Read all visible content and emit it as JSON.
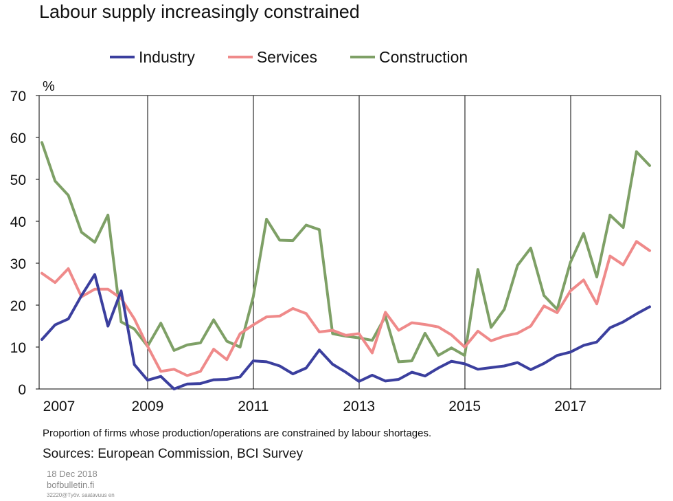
{
  "header": {
    "title": "Labour supply increasingly constrained"
  },
  "footer": {
    "note": "Proportion of firms whose production/operations are constrained by labour shortages.",
    "sources": "Sources: European Commission, BCI Survey",
    "date": "18 Dec 2018",
    "site": "bofbulletin.fi",
    "code": "32220@Työv. saatavuus en"
  },
  "chart_data": {
    "type": "line",
    "title": "Labour supply increasingly constrained",
    "ylabel": "%",
    "ylim": [
      0,
      70
    ],
    "yticks": [
      0,
      10,
      20,
      30,
      40,
      50,
      60,
      70
    ],
    "xticks": [
      "2007",
      "2009",
      "2011",
      "2013",
      "2015",
      "2017"
    ],
    "xlim": [
      2007,
      2018.5
    ],
    "grid": "vertical",
    "legend": "top",
    "x": [
      2007.0,
      2007.25,
      2007.5,
      2007.75,
      2008.0,
      2008.25,
      2008.5,
      2008.75,
      2009.0,
      2009.25,
      2009.5,
      2009.75,
      2010.0,
      2010.25,
      2010.5,
      2010.75,
      2011.0,
      2011.25,
      2011.5,
      2011.75,
      2012.0,
      2012.25,
      2012.5,
      2012.75,
      2013.0,
      2013.25,
      2013.5,
      2013.75,
      2014.0,
      2014.25,
      2014.5,
      2014.75,
      2015.0,
      2015.25,
      2015.5,
      2015.75,
      2016.0,
      2016.25,
      2016.5,
      2016.75,
      2017.0,
      2017.25,
      2017.5,
      2017.75,
      2018.0,
      2018.25
    ],
    "series": [
      {
        "name": "Industry",
        "color": "#3b3f9e",
        "values": [
          11.8,
          15.3,
          16.7,
          22.3,
          27.3,
          15.0,
          23.4,
          5.8,
          2.1,
          3.0,
          0.0,
          1.2,
          1.3,
          2.2,
          2.3,
          2.9,
          6.7,
          6.5,
          5.5,
          3.6,
          5.0,
          9.3,
          5.9,
          4.0,
          1.8,
          3.3,
          1.9,
          2.3,
          4.0,
          3.1,
          5.0,
          6.6,
          6.0,
          4.7,
          5.1,
          5.5,
          6.3,
          4.6,
          6.1,
          8.0,
          8.8,
          10.4,
          11.2,
          14.6,
          16.0,
          17.9
        ]
      },
      {
        "name": "Services",
        "color": "#ef8a8a",
        "values": [
          27.6,
          25.4,
          28.7,
          22.0,
          23.8,
          23.8,
          21.6,
          16.7,
          10.2,
          4.2,
          4.7,
          3.2,
          4.2,
          9.5,
          7.0,
          13.2,
          15.3,
          17.2,
          17.4,
          19.2,
          18.0,
          13.6,
          14.0,
          12.8,
          13.2,
          8.6,
          18.3,
          14.0,
          15.8,
          15.4,
          14.8,
          12.9,
          10.0,
          13.8,
          11.5,
          12.6,
          13.3,
          15.0,
          19.8,
          18.2,
          23.4,
          26.0,
          20.3,
          31.7,
          29.6,
          35.2
        ]
      },
      {
        "name": "Construction",
        "color": "#7ea066",
        "values": [
          58.8,
          49.6,
          46.2,
          37.4,
          35.0,
          41.5,
          16.0,
          14.3,
          10.2,
          15.7,
          9.2,
          10.5,
          11.0,
          16.5,
          11.4,
          10.0,
          22.0,
          40.5,
          35.5,
          35.4,
          39.1,
          38.0,
          13.2,
          12.6,
          12.2,
          11.6,
          17.3,
          6.5,
          6.7,
          13.3,
          8.0,
          9.8,
          8.0,
          28.5,
          14.7,
          19.0,
          29.5,
          33.6,
          22.3,
          19.0,
          30.2,
          37.1,
          26.7,
          41.5,
          38.5,
          56.6
        ]
      }
    ],
    "series_tail": {
      "x": 2018.5,
      "values": [
        19.6,
        33.0,
        53.3
      ]
    }
  }
}
